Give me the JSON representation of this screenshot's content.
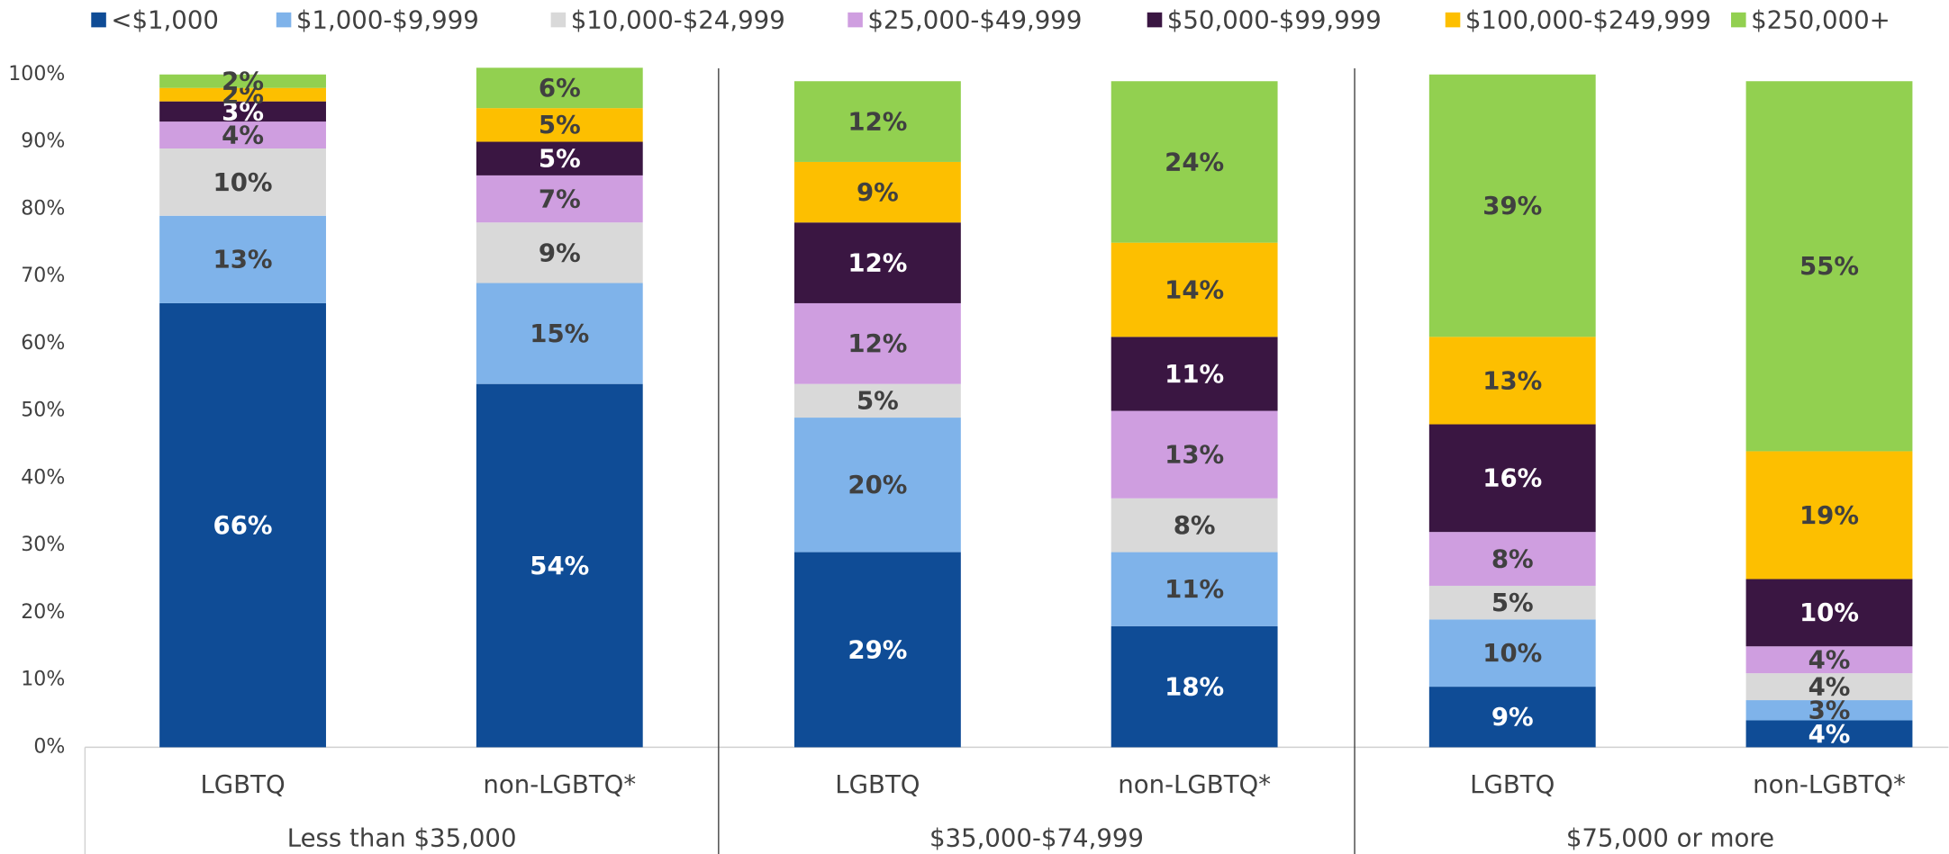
{
  "chart_data": {
    "type": "stacked_bar",
    "categories": [
      "LGBTQ",
      "non-LGBTQ*",
      "LGBTQ",
      "non-LGBTQ*",
      "LGBTQ",
      "non-LGBTQ*"
    ],
    "groups": [
      "Less than $35,000",
      "$35,000-$74,999",
      "$75,000 or more"
    ],
    "series": [
      {
        "name": "<$1,000",
        "color": "#0f4c96",
        "values": [
          66,
          54,
          29,
          18,
          9,
          4
        ],
        "value_labels": [
          "66%",
          "54%",
          "29%",
          "18%",
          "9%",
          "4%"
        ]
      },
      {
        "name": "$1,000-$9,999",
        "color": "#7fb3ea",
        "values": [
          13,
          15,
          20,
          11,
          10,
          3
        ],
        "value_labels": [
          "13%",
          "15%",
          "20%",
          "11%",
          "10%",
          "3%"
        ]
      },
      {
        "name": "$10,000-$24,999",
        "color": "#d9d9d9",
        "values": [
          10,
          9,
          5,
          8,
          5,
          4
        ],
        "value_labels": [
          "10%",
          "9%",
          "5%",
          "8%",
          "5%",
          "4%"
        ]
      },
      {
        "name": "$25,000-$49,999",
        "color": "#cf9ee0",
        "values": [
          4,
          7,
          12,
          13,
          8,
          4
        ],
        "value_labels": [
          "4%",
          "7%",
          "12%",
          "13%",
          "8%",
          "4%"
        ]
      },
      {
        "name": "$50,000-$99,999",
        "color": "#3a1642",
        "values": [
          3,
          5,
          12,
          11,
          16,
          10
        ],
        "value_labels": [
          "3%",
          "5%",
          "12%",
          "11%",
          "16%",
          "10%"
        ]
      },
      {
        "name": "$100,000-$249,999",
        "color": "#fdbf00",
        "values": [
          2,
          5,
          9,
          14,
          13,
          19
        ],
        "value_labels": [
          "2%",
          "5%",
          "9%",
          "14%",
          "13%",
          "19%"
        ]
      },
      {
        "name": "$250,000+",
        "color": "#92d050",
        "values": [
          2,
          6,
          12,
          24,
          39,
          55
        ],
        "value_labels": [
          "2%",
          "6%",
          "12%",
          "24%",
          "39%",
          "55%"
        ]
      }
    ],
    "ylim": [
      0,
      100
    ],
    "yticks": [
      {
        "value": 0,
        "label": "0%"
      },
      {
        "value": 10,
        "label": "10%"
      },
      {
        "value": 20,
        "label": "20%"
      },
      {
        "value": 30,
        "label": "30%"
      },
      {
        "value": 40,
        "label": "40%"
      },
      {
        "value": 50,
        "label": "50%"
      },
      {
        "value": 60,
        "label": "60%"
      },
      {
        "value": 70,
        "label": "70%"
      },
      {
        "value": 80,
        "label": "80%"
      },
      {
        "value": 90,
        "label": "90%"
      },
      {
        "value": 100,
        "label": "100%"
      }
    ],
    "legend": "top"
  }
}
